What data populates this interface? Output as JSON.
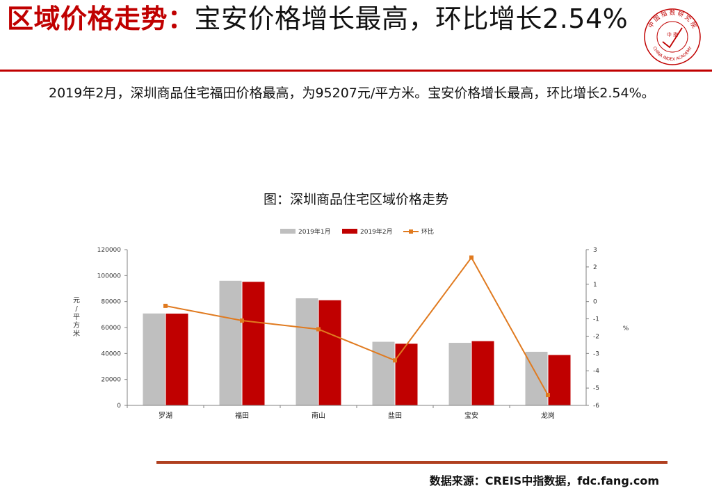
{
  "slide": {
    "title_highlight": "区域价格走势：",
    "title_rest": "宝安价格增长最高，环比增长2.54%",
    "summary": "2019年2月，深圳商品住宅福田价格最高，为95207元/平方米。宝安价格增长最高，环比增长2.54%。",
    "chart_title": "图：深圳商品住宅区域价格走势",
    "source": "数据来源：CREIS中指数据，fdc.fang.com"
  },
  "logo": {
    "top_text": "中 国 指 数 研 究 院",
    "center_text": "中 指",
    "bottom_text": "CHINA INDEX ACADEMY",
    "color": "#c00000"
  },
  "chart_data": {
    "type": "bar",
    "categories": [
      "罗湖",
      "福田",
      "南山",
      "盐田",
      "宝安",
      "龙岗"
    ],
    "series": [
      {
        "name": "2019年1月",
        "type": "bar",
        "axis": "left",
        "color": "#bfbfbf",
        "values": [
          70800,
          96000,
          82500,
          49000,
          48200,
          41300
        ]
      },
      {
        "name": "2019年2月",
        "type": "bar",
        "axis": "left",
        "color": "#c00000",
        "values": [
          70700,
          95207,
          81000,
          47500,
          49500,
          38800
        ]
      },
      {
        "name": "环比",
        "type": "line",
        "axis": "right",
        "color": "#e07a1f",
        "values": [
          -0.25,
          -1.1,
          -1.6,
          -3.4,
          2.54,
          -5.4
        ]
      }
    ],
    "y_left": {
      "label": "元/平方米",
      "min": 0,
      "max": 120000,
      "ticks": [
        0,
        20000,
        40000,
        60000,
        80000,
        100000,
        120000
      ]
    },
    "y_right": {
      "label": "%",
      "min": -6,
      "max": 3,
      "ticks": [
        -6,
        -5,
        -4,
        -3,
        -2,
        -1,
        0,
        1,
        2,
        3
      ]
    },
    "legend_position": "top",
    "grid": false
  }
}
